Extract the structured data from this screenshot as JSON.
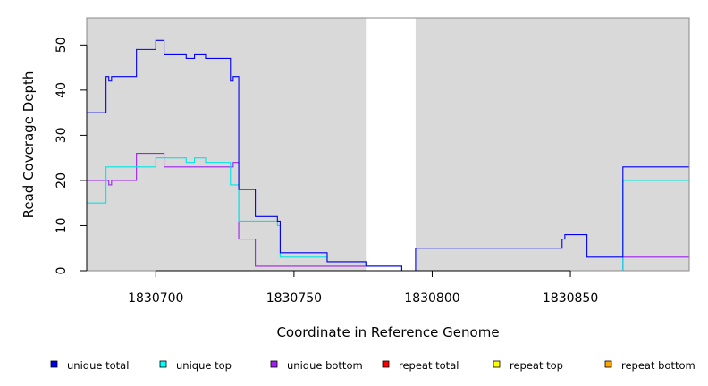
{
  "chart_data": {
    "type": "line",
    "title": "",
    "xlabel": "Coordinate in Reference Genome",
    "ylabel": "Read Coverage Depth",
    "xlim": [
      1830675,
      1830893
    ],
    "ylim": [
      0,
      56
    ],
    "x_ticks": [
      1830700,
      1830750,
      1830800,
      1830850
    ],
    "x_tick_labels": [
      "1830700",
      "1830750",
      "1830800",
      "1830850"
    ],
    "y_ticks": [
      0,
      10,
      20,
      30,
      40,
      50
    ],
    "y_tick_labels": [
      "0",
      "10",
      "20",
      "30",
      "40",
      "50"
    ],
    "grid": false,
    "legend_position": "bottom",
    "shaded_regions": [
      {
        "x_start": 1830675,
        "x_end": 1830776,
        "color": "#d9d9d9"
      },
      {
        "x_start": 1830794,
        "x_end": 1830893,
        "color": "#d9d9d9"
      }
    ],
    "series": [
      {
        "name": "unique total",
        "color": "#0000ee",
        "x": [
          1830675,
          1830682,
          1830683,
          1830684,
          1830693,
          1830700,
          1830703,
          1830711,
          1830714,
          1830718,
          1830727,
          1830728,
          1830730,
          1830736,
          1830744,
          1830745,
          1830762,
          1830776,
          1830789,
          1830794,
          1830847,
          1830848,
          1830856,
          1830869,
          1830893
        ],
        "y": [
          35,
          43,
          42,
          43,
          49,
          51,
          48,
          47,
          48,
          47,
          42,
          43,
          18,
          12,
          11,
          4,
          2,
          1,
          0,
          5,
          7,
          8,
          3,
          23,
          23
        ]
      },
      {
        "name": "unique top",
        "color": "#00e5e5",
        "x": [
          1830675,
          1830682,
          1830700,
          1830711,
          1830714,
          1830718,
          1830727,
          1830730,
          1830744,
          1830745,
          1830762,
          1830776,
          1830789,
          1830794,
          1830869,
          1830893
        ],
        "y": [
          15,
          23,
          25,
          24,
          25,
          24,
          19,
          11,
          10,
          3,
          2,
          1,
          0,
          0,
          20,
          20
        ]
      },
      {
        "name": "unique bottom",
        "color": "#a020f0",
        "x": [
          1830675,
          1830683,
          1830684,
          1830693,
          1830703,
          1830727,
          1830728,
          1830730,
          1830736,
          1830776,
          1830789,
          1830794,
          1830869,
          1830893
        ],
        "y": [
          20,
          19,
          20,
          26,
          23,
          23,
          24,
          7,
          1,
          1,
          0,
          0,
          3,
          3
        ]
      },
      {
        "name": "repeat total",
        "color": "#ff0000",
        "x": [
          1830675,
          1830893
        ],
        "y": [
          0,
          0
        ]
      },
      {
        "name": "repeat top",
        "color": "#ffff00",
        "x": [
          1830675,
          1830893
        ],
        "y": [
          0,
          0
        ]
      },
      {
        "name": "repeat bottom",
        "color": "#ffa500",
        "x": [
          1830675,
          1830893
        ],
        "y": [
          0,
          0
        ]
      }
    ],
    "legend": [
      {
        "label": "unique total",
        "color": "#0000ee"
      },
      {
        "label": "unique top",
        "color": "#00ffff"
      },
      {
        "label": "unique bottom",
        "color": "#a020f0"
      },
      {
        "label": "repeat total",
        "color": "#ff0000"
      },
      {
        "label": "repeat top",
        "color": "#ffff00"
      },
      {
        "label": "repeat bottom",
        "color": "#ffa500"
      }
    ]
  }
}
